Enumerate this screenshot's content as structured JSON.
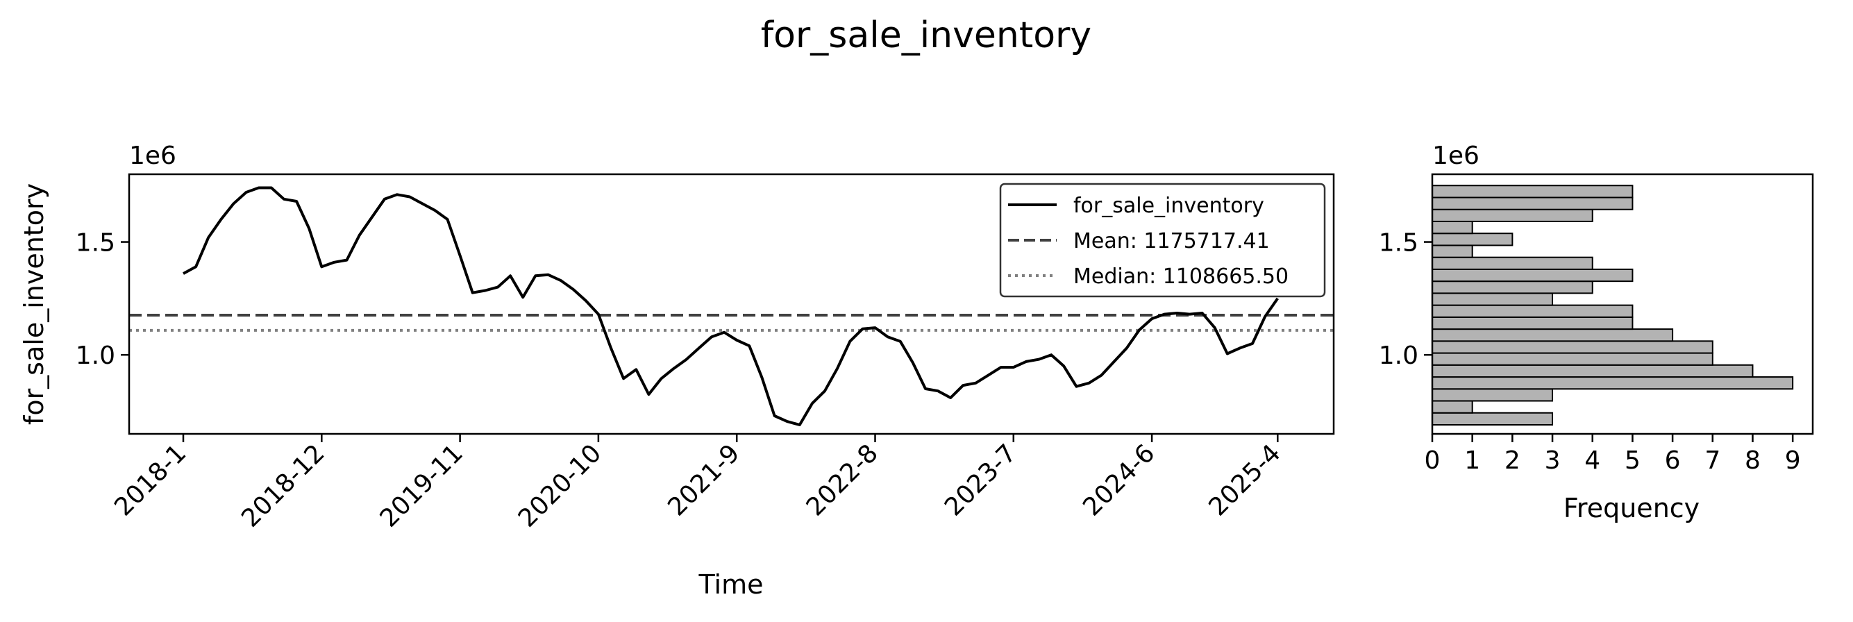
{
  "figure_title": "for_sale_inventory",
  "chart_data": [
    {
      "type": "line",
      "title": "",
      "xlabel": "Time",
      "ylabel": "for_sale_inventory",
      "y_offset_label": "1e6",
      "ylim": [
        650000,
        1800000
      ],
      "y_ticks": [
        1000000,
        1500000
      ],
      "y_tick_labels": [
        "1.0",
        "1.5"
      ],
      "x_ticks": [
        "2018-1",
        "2018-12",
        "2019-11",
        "2020-10",
        "2021-9",
        "2022-8",
        "2023-7",
        "2024-6",
        "2025-4"
      ],
      "x_start": "2018-1",
      "x_end": "2025-4",
      "legend_position": "top-right",
      "series": [
        {
          "name": "for_sale_inventory",
          "color": "#000000",
          "style": "solid",
          "values": [
            1360000,
            1390000,
            1520000,
            1600000,
            1670000,
            1720000,
            1740000,
            1740000,
            1690000,
            1680000,
            1560000,
            1390000,
            1410000,
            1420000,
            1530000,
            1610000,
            1690000,
            1710000,
            1700000,
            1670000,
            1640000,
            1600000,
            1440000,
            1275000,
            1285000,
            1300000,
            1350000,
            1255000,
            1350000,
            1355000,
            1330000,
            1290000,
            1240000,
            1180000,
            1030000,
            895000,
            935000,
            825000,
            895000,
            940000,
            980000,
            1030000,
            1080000,
            1100000,
            1065000,
            1040000,
            900000,
            730000,
            705000,
            690000,
            785000,
            840000,
            940000,
            1060000,
            1115000,
            1120000,
            1080000,
            1060000,
            965000,
            850000,
            840000,
            810000,
            865000,
            875000,
            910000,
            945000,
            945000,
            970000,
            980000,
            1000000,
            950000,
            860000,
            875000,
            910000,
            970000,
            1030000,
            1110000,
            1160000,
            1180000,
            1185000,
            1180000,
            1185000,
            1120000,
            1005000,
            1030000,
            1050000,
            1170000,
            1250000
          ]
        },
        {
          "name": "Mean: 1175717.41",
          "color": "#404040",
          "style": "dashed",
          "constant": 1175717.41
        },
        {
          "name": "Median: 1108665.50",
          "color": "#808080",
          "style": "dotted",
          "constant": 1108665.5
        }
      ]
    },
    {
      "type": "bar",
      "orientation": "horizontal",
      "title": "",
      "xlabel": "Frequency",
      "ylabel": "",
      "y_offset_label": "1e6",
      "bar_color": "#b3b3b3",
      "xlim": [
        0,
        9.5
      ],
      "x_ticks": [
        0,
        1,
        2,
        3,
        4,
        5,
        6,
        7,
        8,
        9
      ],
      "ylim": [
        650000,
        1800000
      ],
      "y_ticks": [
        1000000,
        1500000
      ],
      "y_tick_labels": [
        "1.0",
        "1.5"
      ],
      "bin_start": 690000,
      "bin_width": 53000,
      "values": [
        3,
        1,
        3,
        9,
        8,
        7,
        7,
        6,
        5,
        5,
        3,
        4,
        5,
        4,
        1,
        2,
        1,
        4,
        5,
        5
      ]
    }
  ]
}
